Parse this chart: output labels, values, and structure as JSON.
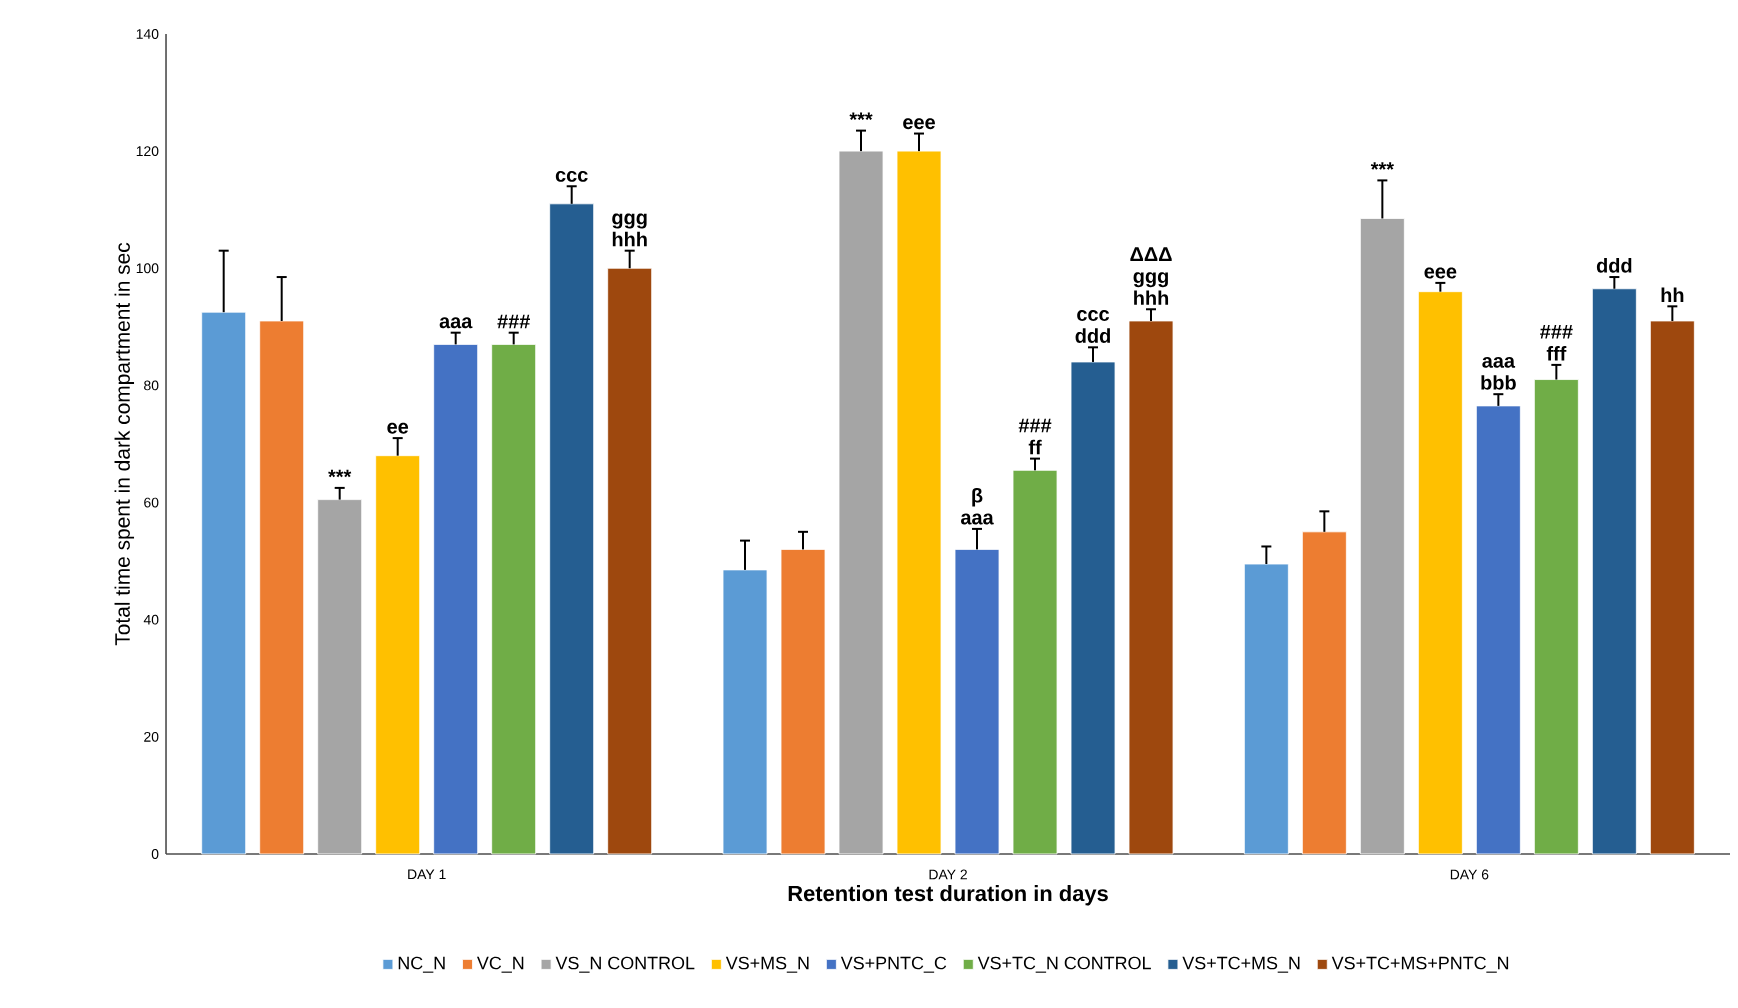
{
  "chart_data": {
    "type": "bar",
    "xlabel": "Retention test duration in days",
    "ylabel": "Total time spent in dark compartment in sec",
    "categories": [
      "DAY 1",
      "DAY 2",
      "DAY 6"
    ],
    "ylim": [
      0,
      140
    ],
    "yticks": [
      0,
      20,
      40,
      60,
      80,
      100,
      120,
      140
    ],
    "grid": false,
    "legend": "bottom",
    "series": [
      {
        "name": "NC_N",
        "color": "#5b9bd5",
        "values": [
          92.5,
          48.5,
          49.5
        ],
        "errors": [
          [
            92.5,
            103
          ],
          [
            48.5,
            53.5
          ],
          [
            49.5,
            52.5
          ]
        ],
        "value_labels": [
          null,
          null,
          null
        ]
      },
      {
        "name": "VC_N",
        "color": "#ed7d31",
        "values": [
          91,
          52,
          55
        ],
        "errors": [
          [
            91,
            98.5
          ],
          [
            52,
            55
          ],
          [
            55,
            58.5
          ]
        ],
        "value_labels": [
          null,
          null,
          null
        ]
      },
      {
        "name": "VS_N CONTROL",
        "color": "#a5a5a5",
        "values": [
          60.5,
          120,
          108.5
        ],
        "errors": [
          [
            60.5,
            62.5
          ],
          [
            120,
            123.5
          ],
          [
            108.5,
            115
          ]
        ],
        "value_labels": [
          "***",
          "***",
          "***"
        ]
      },
      {
        "name": "VS+MS_N",
        "color": "#ffc000",
        "values": [
          68,
          120,
          96
        ],
        "errors": [
          [
            68,
            71
          ],
          [
            120,
            123
          ],
          [
            96,
            97.5
          ]
        ],
        "value_labels": [
          "ee",
          "eee",
          "eee"
        ]
      },
      {
        "name": "VS+PNTC_C",
        "color": "#4472c4",
        "values": [
          87,
          52,
          76.5
        ],
        "errors": [
          [
            87,
            89
          ],
          [
            52,
            55.5
          ],
          [
            76.5,
            78.5
          ]
        ],
        "value_labels": [
          "aaa",
          "β aaa",
          "aaa bbb"
        ]
      },
      {
        "name": "VS+TC_N CONTROL",
        "color": "#70ad47",
        "values": [
          87,
          65.5,
          81
        ],
        "errors": [
          [
            87,
            89
          ],
          [
            65.5,
            67.5
          ],
          [
            81,
            83.5
          ]
        ],
        "value_labels": [
          "###",
          "### ff",
          "### fff"
        ]
      },
      {
        "name": "VS+TC+MS_N",
        "color": "#255e91",
        "values": [
          111,
          84,
          96.5
        ],
        "errors": [
          [
            111,
            114
          ],
          [
            84,
            86.5
          ],
          [
            96.5,
            98.5
          ]
        ],
        "value_labels": [
          "ccc",
          "ccc ddd",
          "ddd"
        ]
      },
      {
        "name": "VS+TC+MS+PNTC_N",
        "color": "#9e480e",
        "values": [
          100,
          91,
          91
        ],
        "errors": [
          [
            100,
            103
          ],
          [
            91,
            93
          ],
          [
            91,
            93.5
          ]
        ],
        "value_labels": [
          "ggg hhh",
          "ΔΔΔ ggg hhh",
          "hh"
        ]
      }
    ]
  }
}
